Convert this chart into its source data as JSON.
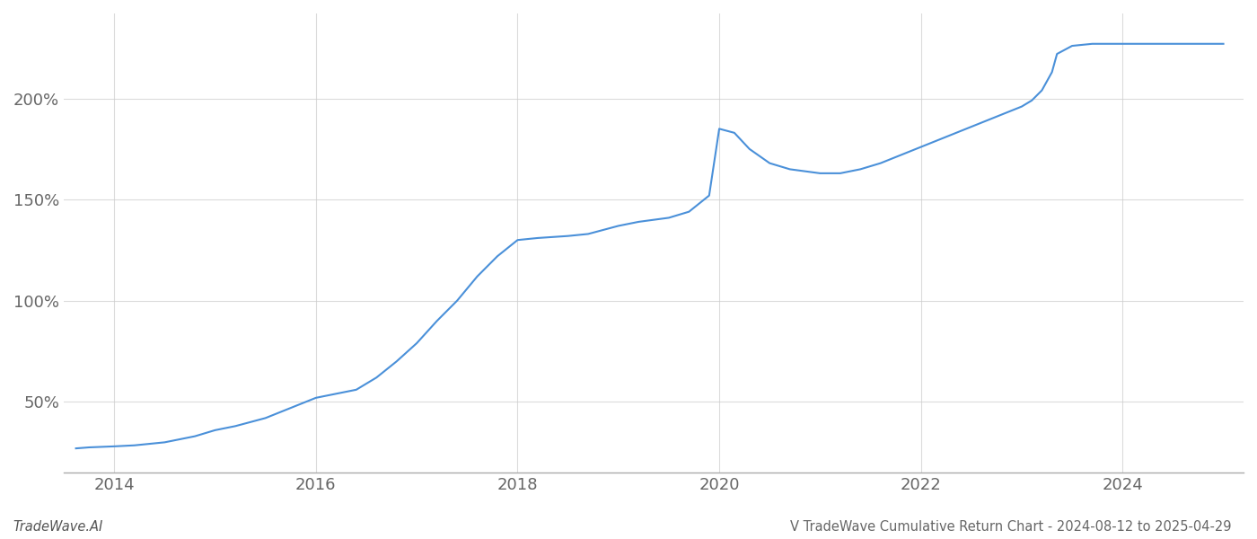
{
  "title": "V TradeWave Cumulative Return Chart - 2024-08-12 to 2025-04-29",
  "watermark": "TradeWave.AI",
  "line_color": "#4a90d9",
  "background_color": "#ffffff",
  "grid_color": "#cccccc",
  "x_years": [
    2014,
    2016,
    2018,
    2020,
    2022,
    2024
  ],
  "yticks": [
    50,
    100,
    150,
    200
  ],
  "xlim": [
    2013.5,
    2025.2
  ],
  "ylim": [
    15,
    242
  ],
  "data_points": [
    [
      2013.62,
      27
    ],
    [
      2013.75,
      27.5
    ],
    [
      2014.0,
      28
    ],
    [
      2014.2,
      28.5
    ],
    [
      2014.5,
      30
    ],
    [
      2014.8,
      33
    ],
    [
      2015.0,
      36
    ],
    [
      2015.2,
      38
    ],
    [
      2015.5,
      42
    ],
    [
      2015.7,
      46
    ],
    [
      2016.0,
      52
    ],
    [
      2016.2,
      54
    ],
    [
      2016.4,
      56
    ],
    [
      2016.6,
      62
    ],
    [
      2016.8,
      70
    ],
    [
      2017.0,
      79
    ],
    [
      2017.2,
      90
    ],
    [
      2017.4,
      100
    ],
    [
      2017.6,
      112
    ],
    [
      2017.8,
      122
    ],
    [
      2018.0,
      130
    ],
    [
      2018.2,
      131
    ],
    [
      2018.5,
      132
    ],
    [
      2018.7,
      133
    ],
    [
      2019.0,
      137
    ],
    [
      2019.2,
      139
    ],
    [
      2019.5,
      141
    ],
    [
      2019.7,
      144
    ],
    [
      2019.9,
      152
    ],
    [
      2020.0,
      185
    ],
    [
      2020.15,
      183
    ],
    [
      2020.3,
      175
    ],
    [
      2020.5,
      168
    ],
    [
      2020.7,
      165
    ],
    [
      2021.0,
      163
    ],
    [
      2021.2,
      163
    ],
    [
      2021.4,
      165
    ],
    [
      2021.6,
      168
    ],
    [
      2021.8,
      172
    ],
    [
      2022.0,
      176
    ],
    [
      2022.2,
      180
    ],
    [
      2022.4,
      184
    ],
    [
      2022.6,
      188
    ],
    [
      2022.8,
      192
    ],
    [
      2023.0,
      196
    ],
    [
      2023.1,
      199
    ],
    [
      2023.2,
      204
    ],
    [
      2023.3,
      213
    ],
    [
      2023.35,
      222
    ],
    [
      2023.5,
      226
    ],
    [
      2023.7,
      227
    ],
    [
      2024.0,
      227
    ],
    [
      2024.3,
      227
    ],
    [
      2024.6,
      227
    ],
    [
      2024.8,
      227
    ],
    [
      2025.0,
      227
    ]
  ]
}
